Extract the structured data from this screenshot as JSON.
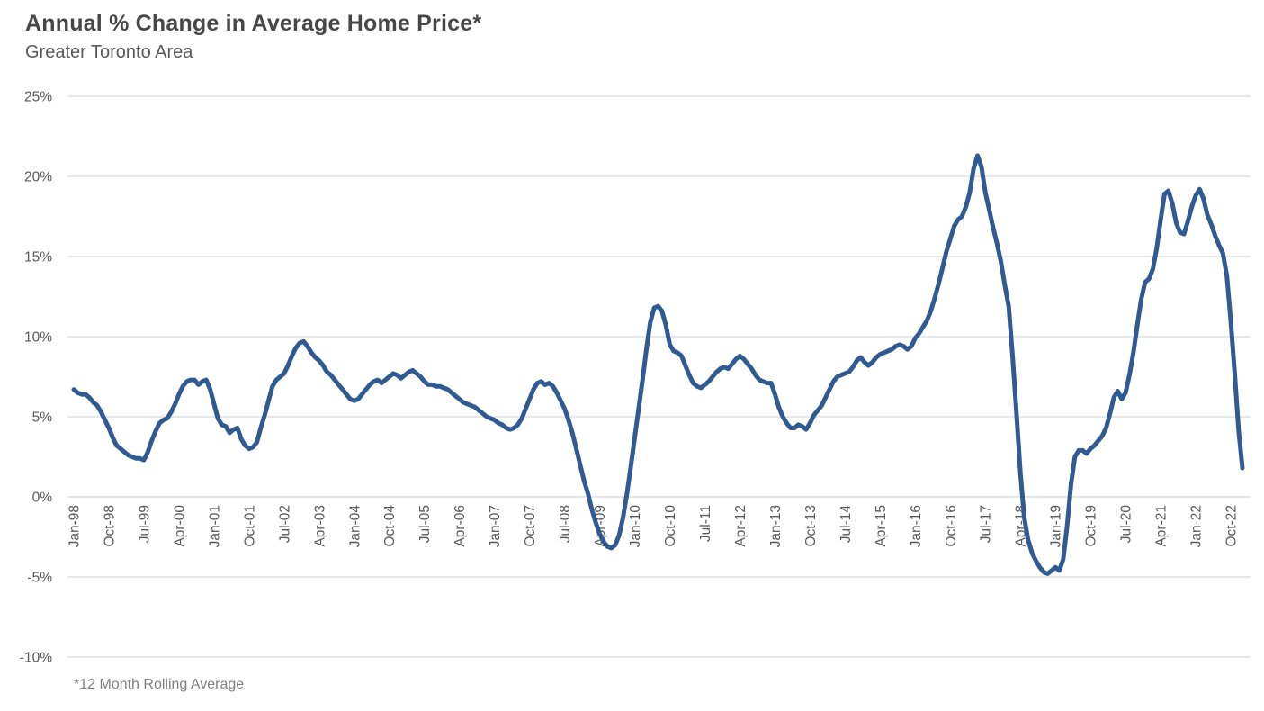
{
  "header": {
    "title": "Annual % Change in Average Home Price*",
    "subtitle": "Greater Toronto Area"
  },
  "footnote": "*12 Month Rolling Average",
  "chart_data": {
    "type": "line",
    "title": "Annual % Change in Average Home Price*",
    "subtitle": "Greater Toronto Area",
    "footnote": "*12 Month Rolling Average",
    "x_start": "Jan-1998",
    "x_interval": "monthly",
    "x_end": "Jan-2023",
    "x_tick_labels": [
      "Jan-98",
      "Oct-98",
      "Jul-99",
      "Apr-00",
      "Jan-01",
      "Oct-01",
      "Jul-02",
      "Apr-03",
      "Jan-04",
      "Oct-04",
      "Jul-05",
      "Apr-06",
      "Jan-07",
      "Oct-07",
      "Jul-08",
      "Apr-09",
      "Jan-10",
      "Oct-10",
      "Jul-11",
      "Apr-12",
      "Jan-13",
      "Oct-13",
      "Jul-14",
      "Apr-15",
      "Jan-16",
      "Oct-16",
      "Jul-17",
      "Apr-18",
      "Jan-19",
      "Oct-19",
      "Jul-20",
      "Apr-21",
      "Jan-22",
      "Oct-22"
    ],
    "x_tick_step_months": 9,
    "y_tick_labels": [
      "25%",
      "20%",
      "15%",
      "10%",
      "5%",
      "0%",
      "-5%",
      "-10%"
    ],
    "y_tick_values": [
      25,
      20,
      15,
      10,
      5,
      0,
      -5,
      -10
    ],
    "ylim": [
      -10,
      25
    ],
    "grid": "horizontal",
    "legend": "none",
    "line_color": "#305B92",
    "gridline_color": "#D9D9D9",
    "axis_text_color": "#595959",
    "series": [
      {
        "name": "Annual % change in average home price, 12-month rolling average, Greater Toronto Area",
        "values": [
          6.7,
          6.5,
          6.4,
          6.4,
          6.2,
          5.9,
          5.7,
          5.3,
          4.8,
          4.3,
          3.7,
          3.2,
          3.0,
          2.8,
          2.6,
          2.5,
          2.4,
          2.4,
          2.3,
          2.8,
          3.5,
          4.1,
          4.6,
          4.8,
          4.9,
          5.3,
          5.8,
          6.4,
          6.9,
          7.2,
          7.3,
          7.3,
          7.0,
          7.2,
          7.3,
          6.7,
          5.8,
          4.9,
          4.5,
          4.4,
          4.0,
          4.2,
          4.3,
          3.6,
          3.2,
          3.0,
          3.1,
          3.4,
          4.3,
          5.1,
          6.0,
          6.9,
          7.3,
          7.5,
          7.7,
          8.2,
          8.8,
          9.3,
          9.6,
          9.7,
          9.4,
          9.0,
          8.7,
          8.5,
          8.2,
          7.8,
          7.6,
          7.3,
          7.0,
          6.7,
          6.4,
          6.1,
          6.0,
          6.1,
          6.4,
          6.7,
          7.0,
          7.2,
          7.3,
          7.1,
          7.3,
          7.5,
          7.7,
          7.6,
          7.4,
          7.6,
          7.8,
          7.9,
          7.7,
          7.5,
          7.2,
          7.0,
          7.0,
          6.9,
          6.9,
          6.8,
          6.7,
          6.5,
          6.3,
          6.1,
          5.9,
          5.8,
          5.7,
          5.6,
          5.4,
          5.2,
          5.0,
          4.9,
          4.8,
          4.6,
          4.5,
          4.3,
          4.2,
          4.3,
          4.5,
          4.9,
          5.5,
          6.1,
          6.7,
          7.1,
          7.2,
          7.0,
          7.1,
          6.9,
          6.5,
          6.0,
          5.5,
          4.8,
          4.0,
          3.0,
          2.0,
          1.0,
          0.2,
          -0.8,
          -1.6,
          -2.3,
          -2.8,
          -3.1,
          -3.2,
          -3.0,
          -2.4,
          -1.3,
          0.2,
          1.9,
          3.7,
          5.5,
          7.3,
          9.2,
          10.9,
          11.8,
          11.9,
          11.6,
          10.7,
          9.5,
          9.1,
          9.0,
          8.8,
          8.2,
          7.6,
          7.1,
          6.9,
          6.8,
          7.0,
          7.2,
          7.5,
          7.8,
          8.0,
          8.1,
          8.0,
          8.3,
          8.6,
          8.8,
          8.6,
          8.3,
          8.0,
          7.6,
          7.3,
          7.2,
          7.1,
          7.1,
          6.4,
          5.6,
          5.0,
          4.6,
          4.3,
          4.3,
          4.5,
          4.4,
          4.2,
          4.6,
          5.1,
          5.4,
          5.7,
          6.2,
          6.7,
          7.2,
          7.5,
          7.6,
          7.7,
          7.8,
          8.1,
          8.5,
          8.7,
          8.4,
          8.2,
          8.4,
          8.7,
          8.9,
          9.0,
          9.1,
          9.2,
          9.4,
          9.5,
          9.4,
          9.2,
          9.4,
          9.9,
          10.2,
          10.6,
          11.0,
          11.6,
          12.4,
          13.3,
          14.3,
          15.3,
          16.1,
          16.9,
          17.3,
          17.5,
          18.1,
          19.0,
          20.5,
          21.3,
          20.6,
          19.0,
          17.9,
          16.8,
          15.8,
          14.7,
          13.2,
          11.9,
          8.8,
          5.2,
          1.5,
          -1.3,
          -2.7,
          -3.5,
          -4.0,
          -4.4,
          -4.7,
          -4.8,
          -4.6,
          -4.4,
          -4.6,
          -3.9,
          -1.8,
          0.8,
          2.5,
          2.9,
          2.9,
          2.7,
          3.0,
          3.2,
          3.5,
          3.8,
          4.3,
          5.2,
          6.2,
          6.6,
          6.1,
          6.5,
          7.6,
          9.0,
          10.7,
          12.3,
          13.4,
          13.6,
          14.2,
          15.5,
          17.3,
          18.9,
          19.1,
          18.3,
          17.1,
          16.5,
          16.4,
          17.2,
          18.1,
          18.8,
          19.2,
          18.6,
          17.6,
          17.0,
          16.3,
          15.7,
          15.2,
          13.8,
          11.0,
          7.8,
          4.2,
          1.8
        ]
      }
    ]
  }
}
